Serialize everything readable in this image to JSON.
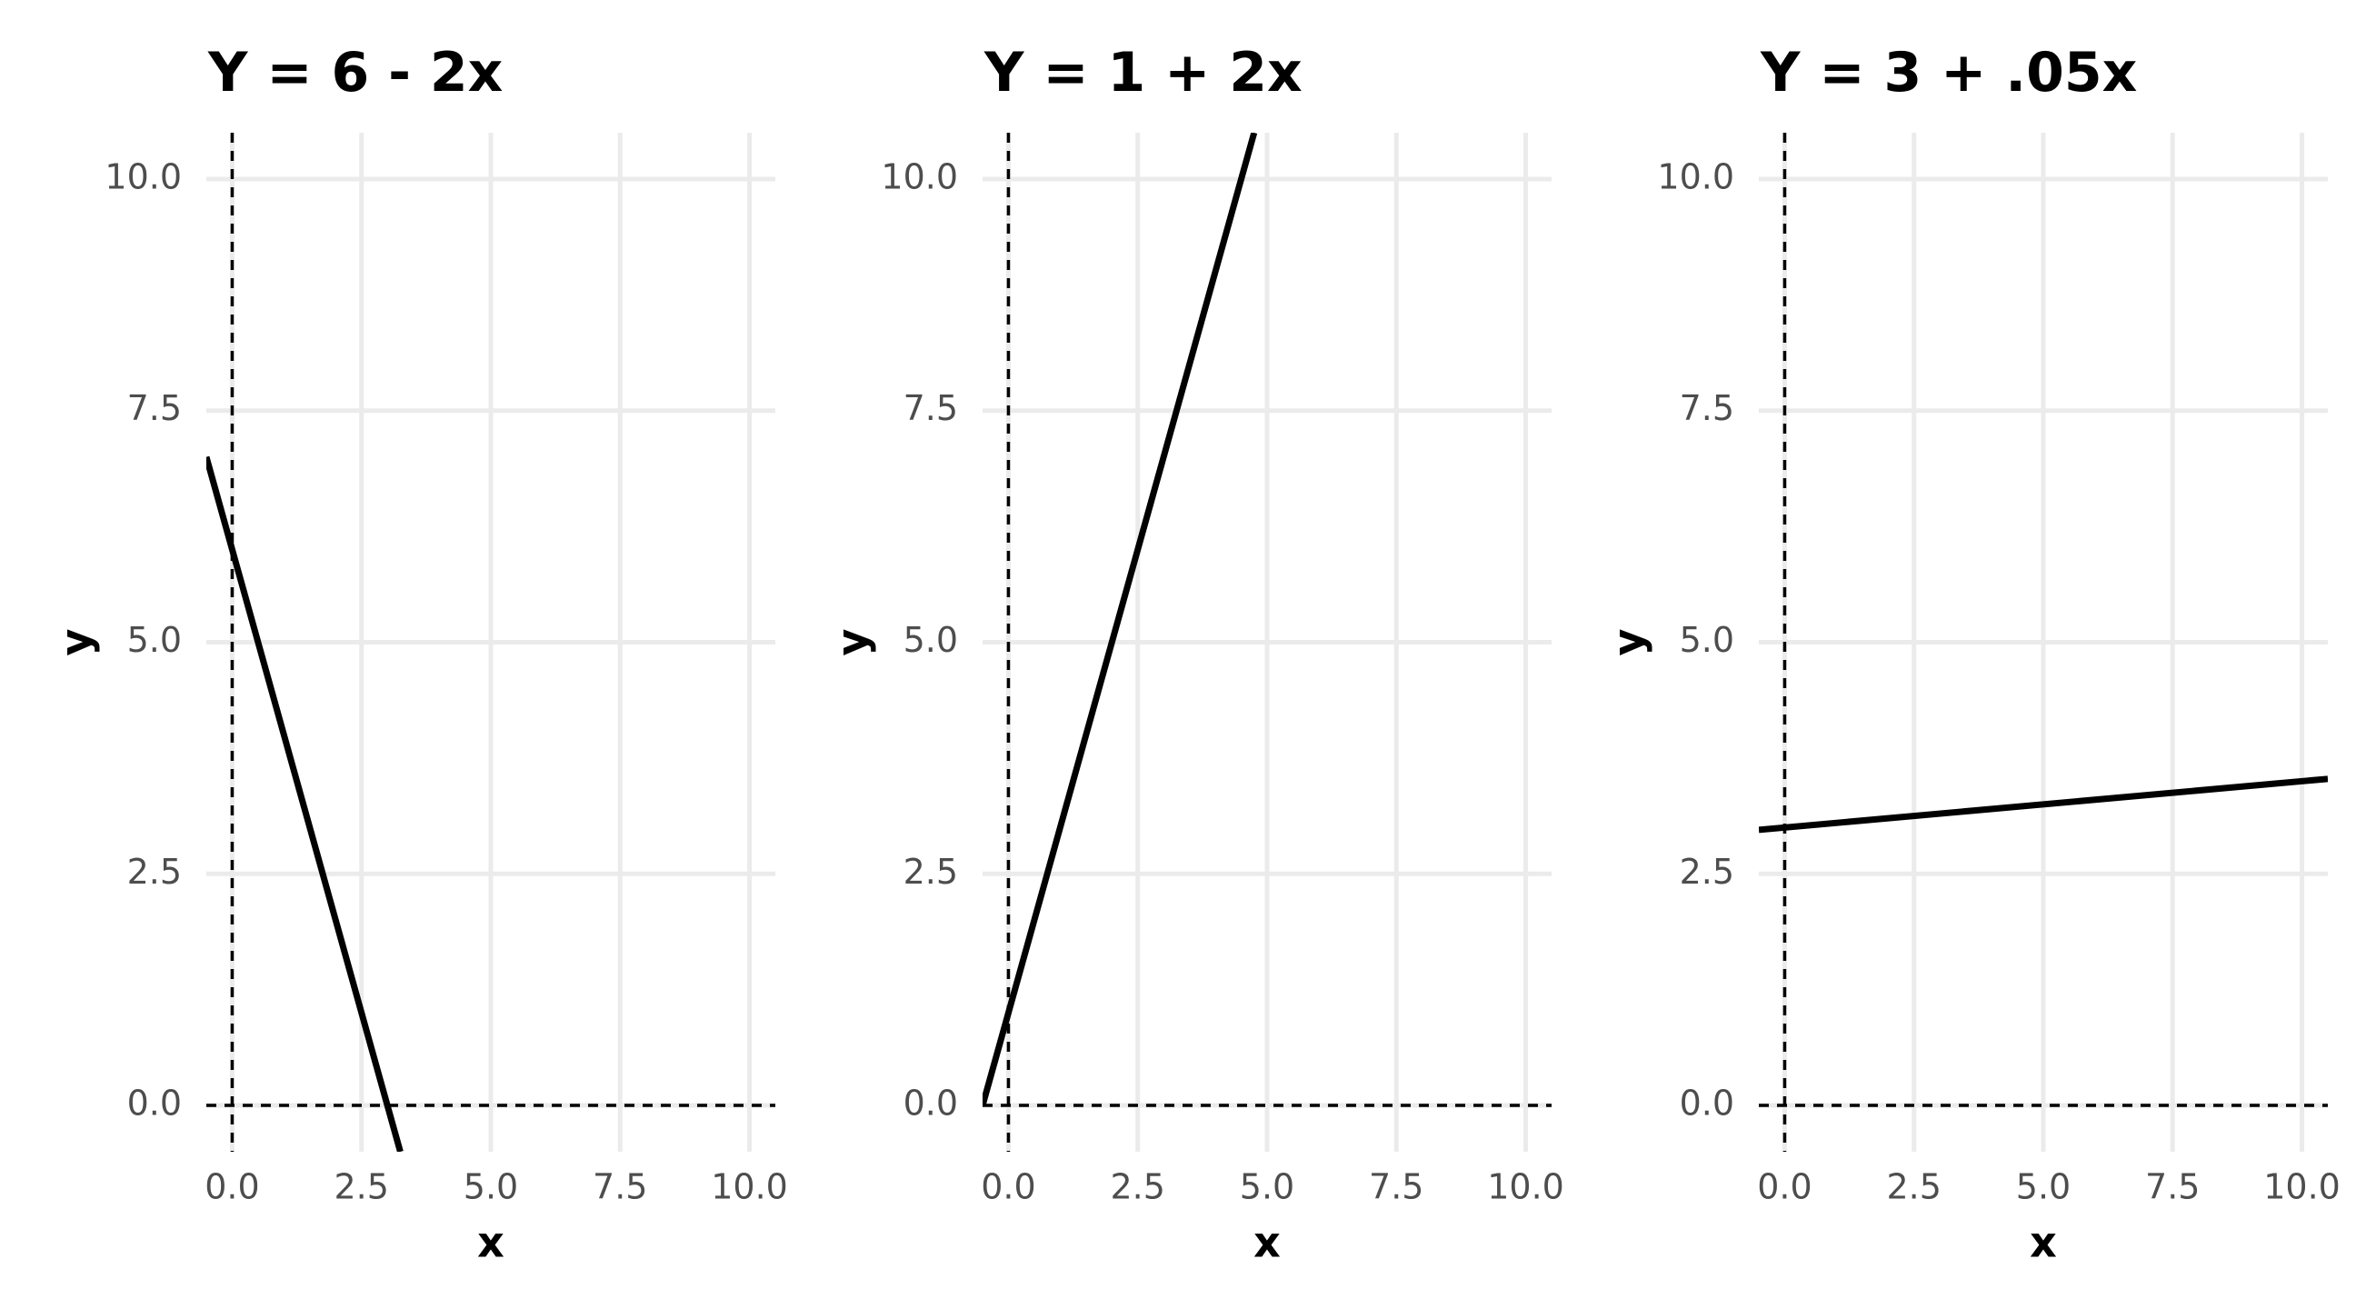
{
  "chart_data": [
    {
      "type": "line",
      "title": "Y = 6 - 2x",
      "x_label": "x",
      "y_label": "y",
      "x": [
        -0.5,
        3.25
      ],
      "series": [
        {
          "color": "#000000",
          "values": [
            7,
            -0.5
          ]
        }
      ],
      "xlim": [
        -0.5,
        10.5
      ],
      "ylim": [
        -0.5,
        10.5
      ],
      "xticks": [
        {
          "value": 0,
          "label": "0.0"
        },
        2.5,
        {
          "value": 5,
          "label": "5.0"
        },
        7.5,
        {
          "value": 10,
          "label": "10.0"
        }
      ],
      "yticks": [
        {
          "value": 0,
          "label": "0.0"
        },
        2.5,
        {
          "value": 5,
          "label": "5.0"
        },
        7.5,
        {
          "value": 10,
          "label": "10.0"
        }
      ],
      "vline": 0,
      "hline": 0,
      "grid": true
    },
    {
      "type": "line",
      "title": "Y = 1 + 2x",
      "x_label": "x",
      "y_label": "y",
      "x": [
        -0.5,
        4.75
      ],
      "series": [
        {
          "color": "#000000",
          "values": [
            0,
            10.5
          ]
        }
      ],
      "xlim": [
        -0.5,
        10.5
      ],
      "ylim": [
        -0.5,
        10.5
      ],
      "xticks": [
        {
          "value": 0,
          "label": "0.0"
        },
        2.5,
        {
          "value": 5,
          "label": "5.0"
        },
        7.5,
        {
          "value": 10,
          "label": "10.0"
        }
      ],
      "yticks": [
        {
          "value": 0,
          "label": "0.0"
        },
        2.5,
        {
          "value": 5,
          "label": "5.0"
        },
        7.5,
        {
          "value": 10,
          "label": "10.0"
        }
      ],
      "vline": 0,
      "hline": 0,
      "grid": true
    },
    {
      "type": "line",
      "title": "Y = 3 + .05x",
      "x_label": "x",
      "y_label": "y",
      "x": [
        -0.5,
        10.5
      ],
      "series": [
        {
          "color": "#000000",
          "values": [
            2.975,
            3.525
          ]
        }
      ],
      "xlim": [
        -0.5,
        10.5
      ],
      "ylim": [
        -0.5,
        10.5
      ],
      "xticks": [
        {
          "value": 0,
          "label": "0.0"
        },
        2.5,
        {
          "value": 5,
          "label": "5.0"
        },
        7.5,
        {
          "value": 10,
          "label": "10.0"
        }
      ],
      "yticks": [
        {
          "value": 0,
          "label": "0.0"
        },
        2.5,
        {
          "value": 5,
          "label": "5.0"
        },
        7.5,
        {
          "value": 10,
          "label": "10.0"
        }
      ],
      "vline": 0,
      "hline": 0,
      "grid": true
    }
  ]
}
